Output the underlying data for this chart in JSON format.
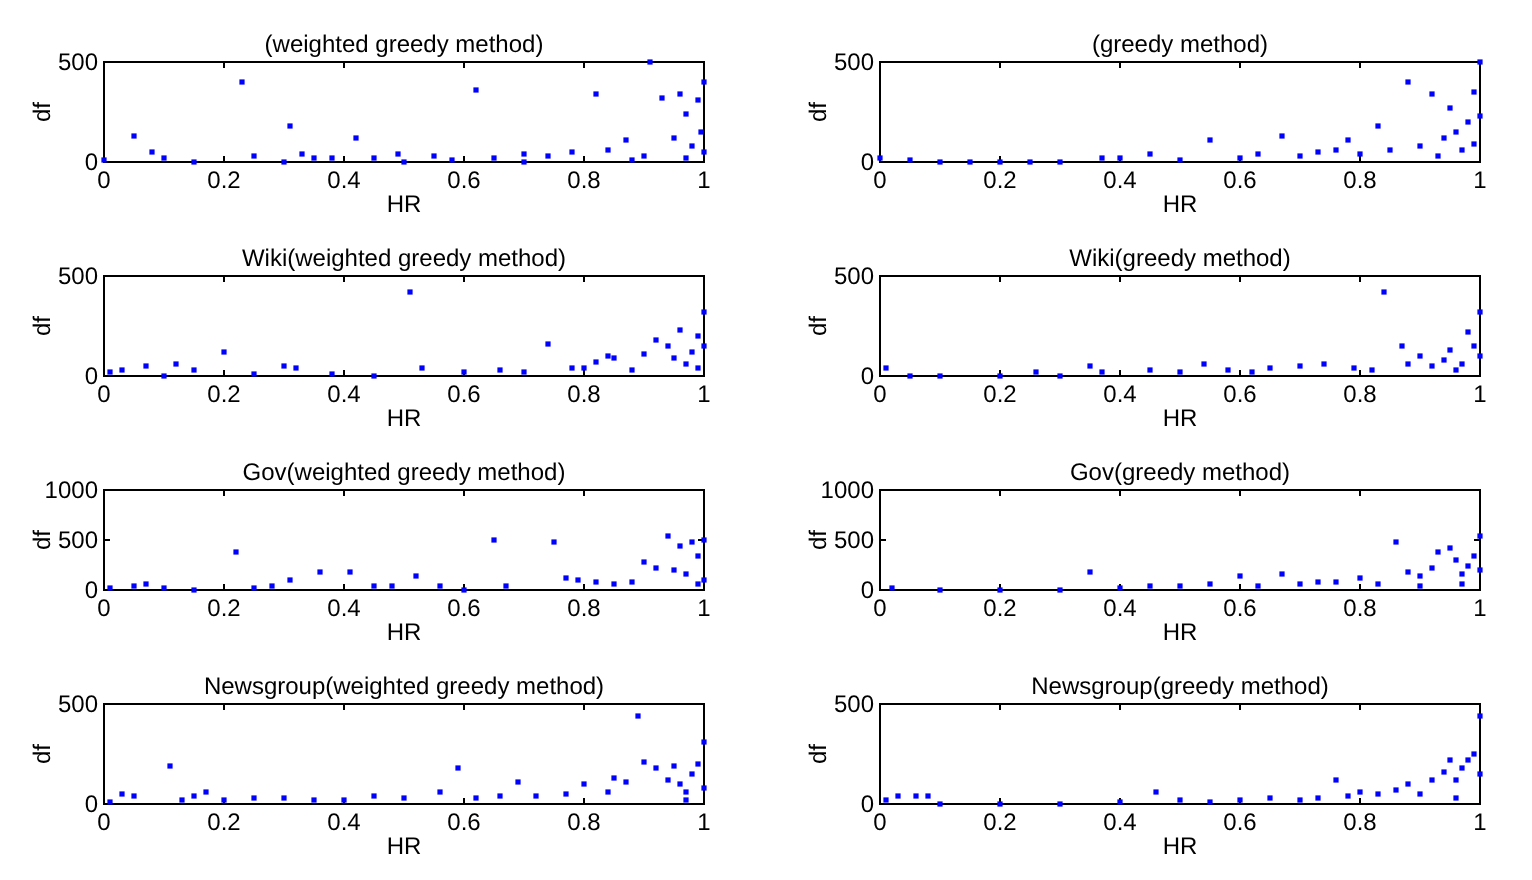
{
  "chart_data": [
    {
      "type": "scatter",
      "title": "(weighted greedy method)",
      "xlabel": "HR",
      "ylabel": "df",
      "color": "#0000ff",
      "marker": "square",
      "xlim": [
        0,
        1
      ],
      "ylim": [
        0,
        500
      ],
      "xticks": [
        0,
        0.2,
        0.4,
        0.6,
        0.8,
        1
      ],
      "yticks": [
        0,
        500
      ],
      "x": [
        0,
        0.05,
        0.08,
        0.1,
        0.23,
        0.25,
        0.31,
        0.33,
        0.35,
        0.38,
        0.42,
        0.45,
        0.49,
        0.55,
        0.58,
        0.62,
        0.65,
        0.7,
        0.74,
        0.78,
        0.82,
        0.84,
        0.87,
        0.9,
        0.91,
        0.93,
        0.95,
        0.96,
        0.97,
        0.98,
        0.99,
        0.995,
        1,
        1,
        0.97,
        0.5,
        0.3,
        0.15,
        0.7,
        0.88
      ],
      "values": [
        10,
        130,
        50,
        20,
        400,
        30,
        180,
        40,
        20,
        20,
        120,
        20,
        40,
        30,
        10,
        360,
        20,
        40,
        30,
        50,
        340,
        60,
        110,
        30,
        500,
        320,
        120,
        340,
        240,
        80,
        310,
        150,
        400,
        50,
        20,
        0,
        0,
        0,
        0,
        10
      ]
    },
    {
      "type": "scatter",
      "title": "(greedy method)",
      "xlabel": "HR",
      "ylabel": "df",
      "color": "#0000ff",
      "marker": "square",
      "xlim": [
        0,
        1
      ],
      "ylim": [
        0,
        500
      ],
      "xticks": [
        0,
        0.2,
        0.4,
        0.6,
        0.8,
        1
      ],
      "yticks": [
        0,
        500
      ],
      "x": [
        0,
        0.05,
        0.1,
        0.2,
        0.3,
        0.37,
        0.4,
        0.45,
        0.5,
        0.55,
        0.6,
        0.63,
        0.67,
        0.7,
        0.73,
        0.76,
        0.78,
        0.8,
        0.83,
        0.85,
        0.88,
        0.9,
        0.92,
        0.94,
        0.95,
        0.96,
        0.97,
        0.98,
        0.99,
        1,
        1,
        0.99,
        0.93,
        0.25,
        0.15
      ],
      "values": [
        20,
        10,
        0,
        0,
        0,
        20,
        20,
        40,
        10,
        110,
        20,
        40,
        130,
        30,
        50,
        60,
        110,
        40,
        180,
        60,
        400,
        80,
        340,
        120,
        270,
        150,
        60,
        200,
        350,
        500,
        230,
        90,
        30,
        0,
        0
      ]
    },
    {
      "type": "scatter",
      "title": "Wiki(weighted greedy method)",
      "xlabel": "HR",
      "ylabel": "df",
      "color": "#0000ff",
      "marker": "square",
      "xlim": [
        0,
        1
      ],
      "ylim": [
        0,
        500
      ],
      "xticks": [
        0,
        0.2,
        0.4,
        0.6,
        0.8,
        1
      ],
      "yticks": [
        0,
        500
      ],
      "x": [
        0.01,
        0.03,
        0.07,
        0.12,
        0.15,
        0.2,
        0.25,
        0.3,
        0.32,
        0.38,
        0.51,
        0.53,
        0.6,
        0.66,
        0.7,
        0.74,
        0.78,
        0.8,
        0.82,
        0.84,
        0.85,
        0.88,
        0.9,
        0.92,
        0.94,
        0.95,
        0.96,
        0.97,
        0.98,
        0.99,
        1,
        1,
        0.99,
        0.45,
        0.1
      ],
      "values": [
        20,
        30,
        50,
        60,
        30,
        120,
        10,
        50,
        40,
        10,
        420,
        40,
        20,
        30,
        20,
        160,
        40,
        40,
        70,
        100,
        90,
        30,
        110,
        180,
        150,
        90,
        230,
        60,
        120,
        200,
        320,
        150,
        40,
        0,
        0
      ]
    },
    {
      "type": "scatter",
      "title": "Wiki(greedy method)",
      "xlabel": "HR",
      "ylabel": "df",
      "color": "#0000ff",
      "marker": "square",
      "xlim": [
        0,
        1
      ],
      "ylim": [
        0,
        500
      ],
      "xticks": [
        0,
        0.2,
        0.4,
        0.6,
        0.8,
        1
      ],
      "yticks": [
        0,
        500
      ],
      "x": [
        0.01,
        0.05,
        0.1,
        0.2,
        0.26,
        0.35,
        0.37,
        0.45,
        0.5,
        0.54,
        0.58,
        0.62,
        0.65,
        0.7,
        0.74,
        0.79,
        0.82,
        0.84,
        0.87,
        0.88,
        0.9,
        0.92,
        0.94,
        0.95,
        0.97,
        0.98,
        0.99,
        1,
        1,
        0.96,
        0.3
      ],
      "values": [
        40,
        0,
        0,
        0,
        20,
        50,
        20,
        30,
        20,
        60,
        30,
        20,
        40,
        50,
        60,
        40,
        30,
        420,
        150,
        60,
        100,
        50,
        80,
        130,
        60,
        220,
        150,
        320,
        100,
        30,
        0
      ]
    },
    {
      "type": "scatter",
      "title": "Gov(weighted greedy method)",
      "xlabel": "HR",
      "ylabel": "df",
      "color": "#0000ff",
      "marker": "square",
      "xlim": [
        0,
        1
      ],
      "ylim": [
        0,
        1000
      ],
      "xticks": [
        0,
        0.2,
        0.4,
        0.6,
        0.8,
        1
      ],
      "yticks": [
        0,
        500,
        1000
      ],
      "x": [
        0.01,
        0.05,
        0.07,
        0.1,
        0.22,
        0.25,
        0.28,
        0.31,
        0.36,
        0.41,
        0.45,
        0.48,
        0.52,
        0.56,
        0.65,
        0.67,
        0.75,
        0.77,
        0.79,
        0.82,
        0.85,
        0.88,
        0.9,
        0.92,
        0.94,
        0.95,
        0.96,
        0.97,
        0.98,
        0.99,
        1,
        1,
        0.99,
        0.15,
        0.6
      ],
      "values": [
        20,
        40,
        60,
        20,
        380,
        20,
        40,
        100,
        180,
        180,
        40,
        40,
        140,
        40,
        500,
        40,
        480,
        120,
        100,
        80,
        60,
        80,
        280,
        220,
        540,
        200,
        440,
        160,
        480,
        340,
        500,
        100,
        60,
        0,
        0
      ]
    },
    {
      "type": "scatter",
      "title": "Gov(greedy method)",
      "xlabel": "HR",
      "ylabel": "df",
      "color": "#0000ff",
      "marker": "square",
      "xlim": [
        0,
        1
      ],
      "ylim": [
        0,
        1000
      ],
      "xticks": [
        0,
        0.2,
        0.4,
        0.6,
        0.8,
        1
      ],
      "yticks": [
        0,
        500,
        1000
      ],
      "x": [
        0.02,
        0.1,
        0.2,
        0.3,
        0.35,
        0.4,
        0.45,
        0.5,
        0.55,
        0.6,
        0.63,
        0.67,
        0.7,
        0.73,
        0.76,
        0.8,
        0.83,
        0.86,
        0.88,
        0.9,
        0.92,
        0.93,
        0.95,
        0.96,
        0.97,
        0.98,
        0.99,
        1,
        1,
        0.97,
        0.9
      ],
      "values": [
        20,
        0,
        0,
        0,
        180,
        20,
        40,
        40,
        60,
        140,
        40,
        160,
        60,
        80,
        80,
        120,
        60,
        480,
        180,
        140,
        220,
        380,
        420,
        300,
        160,
        240,
        340,
        540,
        200,
        60,
        40
      ]
    },
    {
      "type": "scatter",
      "title": "Newsgroup(weighted greedy method)",
      "xlabel": "HR",
      "ylabel": "df",
      "color": "#0000ff",
      "marker": "square",
      "xlim": [
        0,
        1
      ],
      "ylim": [
        0,
        500
      ],
      "xticks": [
        0,
        0.2,
        0.4,
        0.6,
        0.8,
        1
      ],
      "yticks": [
        0,
        500
      ],
      "x": [
        0.01,
        0.03,
        0.05,
        0.11,
        0.13,
        0.15,
        0.17,
        0.2,
        0.25,
        0.3,
        0.35,
        0.4,
        0.45,
        0.5,
        0.56,
        0.59,
        0.62,
        0.66,
        0.69,
        0.72,
        0.77,
        0.8,
        0.84,
        0.85,
        0.87,
        0.89,
        0.9,
        0.92,
        0.94,
        0.95,
        0.96,
        0.97,
        0.98,
        0.99,
        1,
        1,
        0.97
      ],
      "values": [
        10,
        50,
        40,
        190,
        20,
        40,
        60,
        20,
        30,
        30,
        20,
        20,
        40,
        30,
        60,
        180,
        30,
        40,
        110,
        40,
        50,
        100,
        60,
        130,
        110,
        440,
        210,
        180,
        120,
        190,
        100,
        60,
        150,
        200,
        310,
        80,
        20
      ]
    },
    {
      "type": "scatter",
      "title": "Newsgroup(greedy method)",
      "xlabel": "HR",
      "ylabel": "df",
      "color": "#0000ff",
      "marker": "square",
      "xlim": [
        0,
        1
      ],
      "ylim": [
        0,
        500
      ],
      "xticks": [
        0,
        0.2,
        0.4,
        0.6,
        0.8,
        1
      ],
      "yticks": [
        0,
        500
      ],
      "x": [
        0.01,
        0.03,
        0.06,
        0.08,
        0.1,
        0.2,
        0.3,
        0.4,
        0.46,
        0.5,
        0.55,
        0.6,
        0.65,
        0.7,
        0.73,
        0.76,
        0.78,
        0.8,
        0.83,
        0.86,
        0.88,
        0.9,
        0.92,
        0.94,
        0.95,
        0.96,
        0.97,
        0.98,
        0.99,
        1,
        1,
        0.96
      ],
      "values": [
        20,
        40,
        40,
        40,
        0,
        0,
        0,
        10,
        60,
        20,
        10,
        20,
        30,
        20,
        30,
        120,
        40,
        60,
        50,
        70,
        100,
        50,
        120,
        160,
        220,
        120,
        180,
        220,
        250,
        440,
        150,
        30
      ]
    }
  ]
}
